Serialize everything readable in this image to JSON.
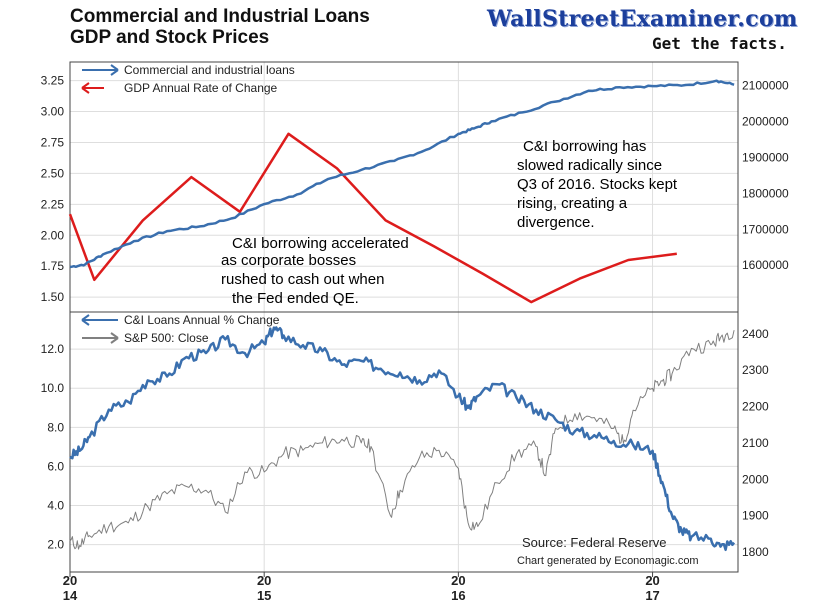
{
  "header": {
    "title_line1": "Commercial and Industrial Loans",
    "title_line2": "GDP and Stock Prices",
    "brand": "WallStreetExaminer.com",
    "tagline": "Get the facts."
  },
  "colors": {
    "blue": "#3a6fae",
    "red": "#dd1c1c",
    "gray": "#808080",
    "grid": "#dedede"
  },
  "chart_data": [
    {
      "type": "line",
      "panel": "top",
      "legend": [
        {
          "label": "Commercial and industrial loans",
          "color": "#3a6fae",
          "axis": "right"
        },
        {
          "label": "GDP Annual Rate of Change",
          "color": "#dd1c1c",
          "axis": "left"
        }
      ],
      "left_axis": {
        "ticks": [
          "3.25",
          "3.00",
          "2.75",
          "2.50",
          "2.25",
          "2.00",
          "1.75",
          "1.50"
        ],
        "range": [
          1.38,
          3.4
        ]
      },
      "right_axis": {
        "ticks": [
          "2100000",
          "2000000",
          "1900000",
          "1800000",
          "1700000",
          "1600000"
        ],
        "range": [
          1470000,
          2165000
        ]
      },
      "series": [
        {
          "name": "GDP Annual Rate of Change",
          "axis": "left",
          "points": [
            [
              2014.0,
              2.17
            ],
            [
              2014.125,
              1.64
            ],
            [
              2014.375,
              2.12
            ],
            [
              2014.625,
              2.47
            ],
            [
              2014.875,
              2.19
            ],
            [
              2015.125,
              2.82
            ],
            [
              2015.375,
              2.54
            ],
            [
              2015.625,
              2.12
            ],
            [
              2015.875,
              1.91
            ],
            [
              2016.125,
              1.69
            ],
            [
              2016.375,
              1.46
            ],
            [
              2016.625,
              1.65
            ],
            [
              2016.875,
              1.8
            ],
            [
              2017.125,
              1.85
            ]
          ]
        },
        {
          "name": "Commercial and industrial loans",
          "axis": "right",
          "points": [
            [
              2014.0,
              1595000
            ],
            [
              2014.08,
              1603000
            ],
            [
              2014.17,
              1630000
            ],
            [
              2014.33,
              1667000
            ],
            [
              2014.5,
              1695000
            ],
            [
              2014.67,
              1708000
            ],
            [
              2014.83,
              1730000
            ],
            [
              2015.0,
              1770000
            ],
            [
              2015.17,
              1797000
            ],
            [
              2015.33,
              1840000
            ],
            [
              2015.5,
              1865000
            ],
            [
              2015.67,
              1890000
            ],
            [
              2015.83,
              1920000
            ],
            [
              2016.0,
              1965000
            ],
            [
              2016.08,
              1980000
            ],
            [
              2016.17,
              2000000
            ],
            [
              2016.33,
              2025000
            ],
            [
              2016.5,
              2055000
            ],
            [
              2016.67,
              2085000
            ],
            [
              2016.83,
              2095000
            ],
            [
              2017.0,
              2098000
            ],
            [
              2017.17,
              2101000
            ],
            [
              2017.33,
              2113000
            ],
            [
              2017.42,
              2102000
            ]
          ]
        }
      ],
      "annotations": [
        "C&I borrowing accelerated",
        "as corporate bosses",
        "rushed to cash out when",
        "the Fed ended QE.",
        "C&I borrowing has",
        "slowed radically since",
        "Q3 of 2016. Stocks kept",
        "rising, creating a",
        "divergence."
      ]
    },
    {
      "type": "line",
      "panel": "bottom",
      "legend": [
        {
          "label": "C&I Loans Annual % Change",
          "color": "#3a6fae",
          "axis": "left"
        },
        {
          "label": "S&P 500: Close",
          "color": "#808080",
          "axis": "right"
        }
      ],
      "left_axis": {
        "ticks": [
          "12.0",
          "10.0",
          "8.0",
          "6.0",
          "4.0",
          "2.0"
        ],
        "range": [
          0.6,
          13.9
        ]
      },
      "right_axis": {
        "ticks": [
          "2400",
          "2300",
          "2200",
          "2100",
          "2000",
          "1900",
          "1800"
        ],
        "range": [
          1745,
          2460
        ]
      },
      "series": [
        {
          "name": "C&I Loans Annual % Change",
          "axis": "left",
          "points": [
            [
              2014.0,
              6.5
            ],
            [
              2014.05,
              6.8
            ],
            [
              2014.1,
              7.5
            ],
            [
              2014.2,
              8.9
            ],
            [
              2014.3,
              9.3
            ],
            [
              2014.4,
              10.4
            ],
            [
              2014.5,
              10.6
            ],
            [
              2014.6,
              11.6
            ],
            [
              2014.7,
              11.8
            ],
            [
              2014.8,
              12.5
            ],
            [
              2014.9,
              11.8
            ],
            [
              2015.0,
              12.3
            ],
            [
              2015.05,
              13.1
            ],
            [
              2015.1,
              12.7
            ],
            [
              2015.2,
              12.2
            ],
            [
              2015.3,
              11.9
            ],
            [
              2015.4,
              11.2
            ],
            [
              2015.5,
              11.4
            ],
            [
              2015.6,
              11.0
            ],
            [
              2015.7,
              10.8
            ],
            [
              2015.8,
              10.4
            ],
            [
              2015.9,
              10.9
            ],
            [
              2016.0,
              9.6
            ],
            [
              2016.05,
              9.0
            ],
            [
              2016.1,
              9.6
            ],
            [
              2016.2,
              10.2
            ],
            [
              2016.3,
              9.5
            ],
            [
              2016.4,
              8.9
            ],
            [
              2016.5,
              8.4
            ],
            [
              2016.6,
              7.8
            ],
            [
              2016.7,
              7.6
            ],
            [
              2016.8,
              7.3
            ],
            [
              2016.9,
              7.1
            ],
            [
              2017.0,
              6.8
            ],
            [
              2017.05,
              5.2
            ],
            [
              2017.1,
              3.5
            ],
            [
              2017.15,
              2.7
            ],
            [
              2017.2,
              2.4
            ],
            [
              2017.3,
              2.3
            ],
            [
              2017.35,
              1.9
            ],
            [
              2017.42,
              2.1
            ]
          ]
        },
        {
          "name": "S&P 500: Close",
          "axis": "right",
          "points": [
            [
              2014.0,
              1830
            ],
            [
              2014.05,
              1818
            ],
            [
              2014.1,
              1845
            ],
            [
              2014.2,
              1870
            ],
            [
              2014.3,
              1880
            ],
            [
              2014.4,
              1925
            ],
            [
              2014.5,
              1960
            ],
            [
              2014.6,
              1980
            ],
            [
              2014.7,
              1970
            ],
            [
              2014.8,
              1910
            ],
            [
              2014.9,
              2020
            ],
            [
              2015.0,
              2020
            ],
            [
              2015.1,
              2070
            ],
            [
              2015.2,
              2080
            ],
            [
              2015.3,
              2100
            ],
            [
              2015.4,
              2110
            ],
            [
              2015.5,
              2100
            ],
            [
              2015.55,
              2090
            ],
            [
              2015.65,
              1900
            ],
            [
              2015.7,
              1970
            ],
            [
              2015.8,
              2060
            ],
            [
              2015.9,
              2080
            ],
            [
              2016.0,
              2030
            ],
            [
              2016.05,
              1880
            ],
            [
              2016.1,
              1870
            ],
            [
              2016.2,
              1990
            ],
            [
              2016.3,
              2070
            ],
            [
              2016.4,
              2090
            ],
            [
              2016.45,
              2010
            ],
            [
              2016.5,
              2140
            ],
            [
              2016.6,
              2180
            ],
            [
              2016.7,
              2170
            ],
            [
              2016.8,
              2140
            ],
            [
              2016.85,
              2100
            ],
            [
              2016.9,
              2190
            ],
            [
              2017.0,
              2250
            ],
            [
              2017.05,
              2270
            ],
            [
              2017.1,
              2290
            ],
            [
              2017.2,
              2360
            ],
            [
              2017.3,
              2370
            ],
            [
              2017.35,
              2390
            ],
            [
              2017.42,
              2410
            ]
          ]
        }
      ],
      "x_ticks": [
        {
          "top": "20",
          "bottom": "14"
        },
        {
          "top": "20",
          "bottom": "15"
        },
        {
          "top": "20",
          "bottom": "16"
        },
        {
          "top": "20",
          "bottom": "17"
        }
      ]
    }
  ],
  "source": "Source: Federal Reserve",
  "generated": "Chart generated by Economagic.com"
}
